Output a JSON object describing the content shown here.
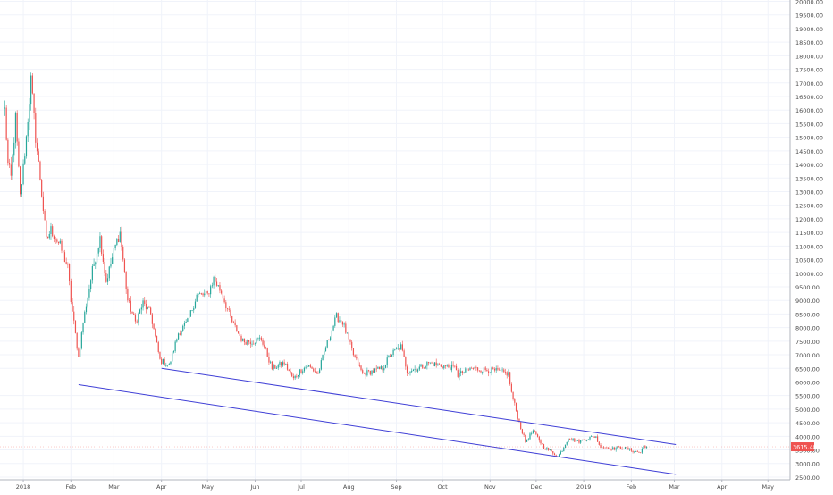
{
  "colors": {
    "background": "#ffffff",
    "grid": "#f0f3fa",
    "axis_line": "#b2b5be",
    "axis_text": "#4a4a4a",
    "up": "#26a69a",
    "down": "#ef5350",
    "trendline": "#3f3fd6",
    "price_box": "#ef5350",
    "price_text": "#ffffff"
  },
  "chart_data": {
    "type": "candlestick",
    "title": "",
    "xlabel": "",
    "ylabel": "",
    "ylim": [
      2400,
      20050
    ],
    "x_ticks": [
      "2018",
      "Feb",
      "Mar",
      "Apr",
      "May",
      "Jun",
      "Jul",
      "Aug",
      "Sep",
      "Oct",
      "Nov",
      "Dec",
      "2019",
      "Feb",
      "Mar",
      "Apr",
      "May"
    ],
    "y_ticks": [
      "2500.00",
      "3000.00",
      "3500.00",
      "4000.00",
      "4500.00",
      "5000.00",
      "5500.00",
      "6000.00",
      "6500.00",
      "7000.00",
      "7500.00",
      "8000.00",
      "8500.00",
      "9000.00",
      "9500.00",
      "10000.00",
      "10500.00",
      "11000.00",
      "11500.00",
      "12000.00",
      "12500.00",
      "13000.00",
      "13500.00",
      "14000.00",
      "14500.00",
      "15000.00",
      "15500.00",
      "16000.00",
      "16500.00",
      "17000.00",
      "17500.00",
      "18000.00",
      "18500.00",
      "19000.00",
      "19500.00",
      "20000.00"
    ],
    "anchors": [
      [
        "2017-12-20",
        16000
      ],
      [
        "2017-12-22",
        14000
      ],
      [
        "2017-12-24",
        13500
      ],
      [
        "2017-12-27",
        15700
      ],
      [
        "2017-12-30",
        12800
      ],
      [
        "2018-01-03",
        15000
      ],
      [
        "2018-01-06",
        17100
      ],
      [
        "2018-01-09",
        15000
      ],
      [
        "2018-01-12",
        13500
      ],
      [
        "2018-01-16",
        11200
      ],
      [
        "2018-01-19",
        11600
      ],
      [
        "2018-01-25",
        11000
      ],
      [
        "2018-01-30",
        10200
      ],
      [
        "2018-02-01",
        9000
      ],
      [
        "2018-02-06",
        6900
      ],
      [
        "2018-02-09",
        8200
      ],
      [
        "2018-02-15",
        10100
      ],
      [
        "2018-02-20",
        11300
      ],
      [
        "2018-02-24",
        9700
      ],
      [
        "2018-03-02",
        11000
      ],
      [
        "2018-03-05",
        11500
      ],
      [
        "2018-03-10",
        9000
      ],
      [
        "2018-03-15",
        8200
      ],
      [
        "2018-03-20",
        8900
      ],
      [
        "2018-03-25",
        8500
      ],
      [
        "2018-03-31",
        6800
      ],
      [
        "2018-04-06",
        6600
      ],
      [
        "2018-04-12",
        7800
      ],
      [
        "2018-04-18",
        8200
      ],
      [
        "2018-04-24",
        9200
      ],
      [
        "2018-05-01",
        9200
      ],
      [
        "2018-05-05",
        9800
      ],
      [
        "2018-05-10",
        9300
      ],
      [
        "2018-05-17",
        8200
      ],
      [
        "2018-05-24",
        7500
      ],
      [
        "2018-05-31",
        7500
      ],
      [
        "2018-06-05",
        7600
      ],
      [
        "2018-06-12",
        6500
      ],
      [
        "2018-06-20",
        6700
      ],
      [
        "2018-06-26",
        6100
      ],
      [
        "2018-06-30",
        6400
      ],
      [
        "2018-07-05",
        6600
      ],
      [
        "2018-07-12",
        6300
      ],
      [
        "2018-07-17",
        7300
      ],
      [
        "2018-07-24",
        8400
      ],
      [
        "2018-07-28",
        8200
      ],
      [
        "2018-08-04",
        7000
      ],
      [
        "2018-08-10",
        6300
      ],
      [
        "2018-08-17",
        6400
      ],
      [
        "2018-08-23",
        6500
      ],
      [
        "2018-08-28",
        7000
      ],
      [
        "2018-09-04",
        7300
      ],
      [
        "2018-09-08",
        6400
      ],
      [
        "2018-09-15",
        6500
      ],
      [
        "2018-09-22",
        6700
      ],
      [
        "2018-09-30",
        6600
      ],
      [
        "2018-10-10",
        6500
      ],
      [
        "2018-10-11",
        6250
      ],
      [
        "2018-10-20",
        6500
      ],
      [
        "2018-10-28",
        6450
      ],
      [
        "2018-11-05",
        6400
      ],
      [
        "2018-11-13",
        6300
      ],
      [
        "2018-11-15",
        5600
      ],
      [
        "2018-11-20",
        4500
      ],
      [
        "2018-11-24",
        3800
      ],
      [
        "2018-11-29",
        4200
      ],
      [
        "2018-12-06",
        3600
      ],
      [
        "2018-12-12",
        3400
      ],
      [
        "2018-12-15",
        3250
      ],
      [
        "2018-12-18",
        3500
      ],
      [
        "2018-12-22",
        3950
      ],
      [
        "2018-12-28",
        3800
      ],
      [
        "2019-01-05",
        3950
      ],
      [
        "2019-01-09",
        4000
      ],
      [
        "2019-01-11",
        3650
      ],
      [
        "2019-01-20",
        3550
      ],
      [
        "2019-01-26",
        3600
      ],
      [
        "2019-02-03",
        3450
      ],
      [
        "2019-02-07",
        3400
      ],
      [
        "2019-02-09",
        3650
      ],
      [
        "2019-02-11",
        3615
      ]
    ],
    "trendlines": [
      {
        "from": [
          "2018-02-06",
          5900
        ],
        "to": [
          "2019-03-02",
          2600
        ]
      },
      {
        "from": [
          "2018-04-01",
          6500
        ],
        "to": [
          "2019-03-02",
          3700
        ]
      }
    ],
    "last_price": "3615.48",
    "grid": true,
    "legend": "none"
  }
}
